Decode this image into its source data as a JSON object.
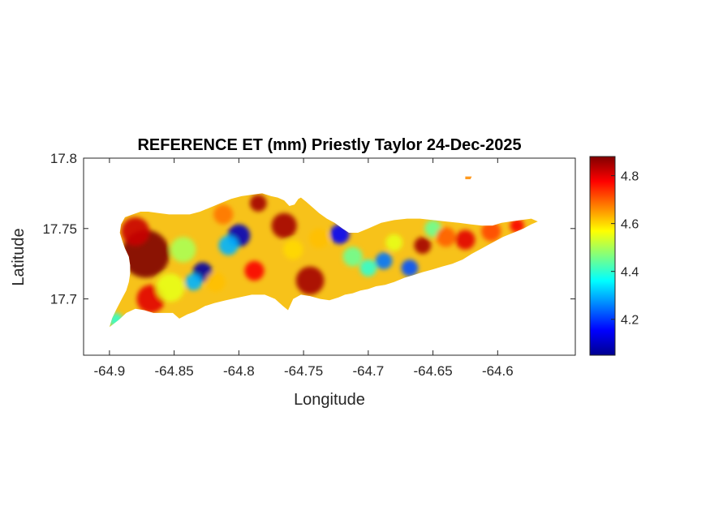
{
  "chart_data": {
    "type": "heatmap",
    "title": "REFERENCE ET (mm) Priestly Taylor 24-Dec-2025",
    "xlabel": "Longitude",
    "ylabel": "Latitude",
    "xlim": [
      -64.92,
      -64.54
    ],
    "ylim": [
      17.66,
      17.8
    ],
    "xticks": [
      -64.9,
      -64.85,
      -64.8,
      -64.75,
      -64.7,
      -64.65,
      -64.6
    ],
    "xtick_labels": [
      "-64.9",
      "-64.85",
      "-64.8",
      "-64.75",
      "-64.7",
      "-64.65",
      "-64.6"
    ],
    "yticks": [
      17.7,
      17.75,
      17.8
    ],
    "ytick_labels": [
      "17.7",
      "17.75",
      "17.8"
    ],
    "colorbar": {
      "colormap": "jet",
      "range": [
        4.05,
        4.88
      ],
      "ticks": [
        4.2,
        4.4,
        4.6,
        4.8
      ],
      "tick_labels": [
        "4.2",
        "4.4",
        "4.6",
        "4.8"
      ]
    },
    "grid": false,
    "outline": [
      [
        -64.9,
        17.68
      ],
      [
        -64.893,
        17.685
      ],
      [
        -64.887,
        17.69
      ],
      [
        -64.88,
        17.693
      ],
      [
        -64.873,
        17.692
      ],
      [
        -64.866,
        17.69
      ],
      [
        -64.858,
        17.69
      ],
      [
        -64.851,
        17.69
      ],
      [
        -64.846,
        17.686
      ],
      [
        -64.84,
        17.689
      ],
      [
        -64.834,
        17.691
      ],
      [
        -64.826,
        17.695
      ],
      [
        -64.819,
        17.697
      ],
      [
        -64.81,
        17.699
      ],
      [
        -64.8,
        17.701
      ],
      [
        -64.79,
        17.703
      ],
      [
        -64.78,
        17.703
      ],
      [
        -64.772,
        17.7
      ],
      [
        -64.766,
        17.695
      ],
      [
        -64.762,
        17.692
      ],
      [
        -64.758,
        17.7
      ],
      [
        -64.752,
        17.703
      ],
      [
        -64.745,
        17.702
      ],
      [
        -64.737,
        17.7
      ],
      [
        -64.73,
        17.699
      ],
      [
        -64.723,
        17.701
      ],
      [
        -64.718,
        17.703
      ],
      [
        -64.712,
        17.704
      ],
      [
        -64.706,
        17.706
      ],
      [
        -64.7,
        17.707
      ],
      [
        -64.694,
        17.709
      ],
      [
        -64.687,
        17.71
      ],
      [
        -64.68,
        17.712
      ],
      [
        -64.672,
        17.715
      ],
      [
        -64.665,
        17.717
      ],
      [
        -64.658,
        17.719
      ],
      [
        -64.65,
        17.721
      ],
      [
        -64.643,
        17.723
      ],
      [
        -64.635,
        17.725
      ],
      [
        -64.627,
        17.728
      ],
      [
        -64.62,
        17.732
      ],
      [
        -64.612,
        17.736
      ],
      [
        -64.604,
        17.74
      ],
      [
        -64.596,
        17.744
      ],
      [
        -64.588,
        17.747
      ],
      [
        -64.58,
        17.75
      ],
      [
        -64.574,
        17.753
      ],
      [
        -64.569,
        17.755
      ],
      [
        -64.574,
        17.757
      ],
      [
        -64.582,
        17.756
      ],
      [
        -64.59,
        17.755
      ],
      [
        -64.597,
        17.754
      ],
      [
        -64.604,
        17.752
      ],
      [
        -64.612,
        17.752
      ],
      [
        -64.621,
        17.753
      ],
      [
        -64.63,
        17.754
      ],
      [
        -64.64,
        17.755
      ],
      [
        -64.65,
        17.756
      ],
      [
        -64.66,
        17.757
      ],
      [
        -64.67,
        17.757
      ],
      [
        -64.68,
        17.756
      ],
      [
        -64.69,
        17.754
      ],
      [
        -64.7,
        17.75
      ],
      [
        -64.708,
        17.747
      ],
      [
        -64.715,
        17.747
      ],
      [
        -64.72,
        17.75
      ],
      [
        -64.726,
        17.754
      ],
      [
        -64.732,
        17.757
      ],
      [
        -64.738,
        17.761
      ],
      [
        -64.743,
        17.765
      ],
      [
        -64.748,
        17.769
      ],
      [
        -64.752,
        17.772
      ],
      [
        -64.754,
        17.771
      ],
      [
        -64.757,
        17.767
      ],
      [
        -64.761,
        17.766
      ],
      [
        -64.765,
        17.77
      ],
      [
        -64.77,
        17.772
      ],
      [
        -64.775,
        17.773
      ],
      [
        -64.782,
        17.775
      ],
      [
        -64.79,
        17.774
      ],
      [
        -64.798,
        17.773
      ],
      [
        -64.806,
        17.771
      ],
      [
        -64.814,
        17.768
      ],
      [
        -64.822,
        17.765
      ],
      [
        -64.83,
        17.762
      ],
      [
        -64.838,
        17.76
      ],
      [
        -64.846,
        17.76
      ],
      [
        -64.854,
        17.76
      ],
      [
        -64.862,
        17.761
      ],
      [
        -64.87,
        17.762
      ],
      [
        -64.876,
        17.762
      ],
      [
        -64.882,
        17.76
      ],
      [
        -64.888,
        17.758
      ],
      [
        -64.891,
        17.753
      ],
      [
        -64.892,
        17.747
      ],
      [
        -64.89,
        17.741
      ],
      [
        -64.888,
        17.736
      ],
      [
        -64.885,
        17.73
      ],
      [
        -64.884,
        17.724
      ],
      [
        -64.884,
        17.718
      ],
      [
        -64.885,
        17.712
      ],
      [
        -64.887,
        17.706
      ],
      [
        -64.891,
        17.699
      ],
      [
        -64.895,
        17.692
      ],
      [
        -64.898,
        17.686
      ]
    ],
    "islet": [
      [
        -64.625,
        17.787
      ],
      [
        -64.62,
        17.787
      ],
      [
        -64.621,
        17.785
      ],
      [
        -64.625,
        17.785
      ]
    ],
    "hotspots": [
      {
        "lon": -64.872,
        "lat": 17.732,
        "value": 4.88,
        "radius": 0.017
      },
      {
        "lon": -64.88,
        "lat": 17.748,
        "value": 4.82,
        "radius": 0.01
      },
      {
        "lon": -64.868,
        "lat": 17.7,
        "value": 4.8,
        "radius": 0.01
      },
      {
        "lon": -64.853,
        "lat": 17.708,
        "value": 4.55,
        "radius": 0.01
      },
      {
        "lon": -64.843,
        "lat": 17.735,
        "value": 4.5,
        "radius": 0.009
      },
      {
        "lon": -64.828,
        "lat": 17.719,
        "value": 4.08,
        "radius": 0.007
      },
      {
        "lon": -64.835,
        "lat": 17.712,
        "value": 4.3,
        "radius": 0.006
      },
      {
        "lon": -64.8,
        "lat": 17.745,
        "value": 4.1,
        "radius": 0.008
      },
      {
        "lon": -64.808,
        "lat": 17.738,
        "value": 4.3,
        "radius": 0.007
      },
      {
        "lon": -64.818,
        "lat": 17.712,
        "value": 4.62,
        "radius": 0.007
      },
      {
        "lon": -64.812,
        "lat": 17.76,
        "value": 4.68,
        "radius": 0.007
      },
      {
        "lon": -64.788,
        "lat": 17.72,
        "value": 4.78,
        "radius": 0.007
      },
      {
        "lon": -64.785,
        "lat": 17.768,
        "value": 4.85,
        "radius": 0.006
      },
      {
        "lon": -64.765,
        "lat": 17.752,
        "value": 4.85,
        "radius": 0.009
      },
      {
        "lon": -64.758,
        "lat": 17.735,
        "value": 4.6,
        "radius": 0.007
      },
      {
        "lon": -64.745,
        "lat": 17.713,
        "value": 4.85,
        "radius": 0.01
      },
      {
        "lon": -64.738,
        "lat": 17.743,
        "value": 4.62,
        "radius": 0.007
      },
      {
        "lon": -64.722,
        "lat": 17.746,
        "value": 4.15,
        "radius": 0.007
      },
      {
        "lon": -64.712,
        "lat": 17.73,
        "value": 4.45,
        "radius": 0.007
      },
      {
        "lon": -64.7,
        "lat": 17.722,
        "value": 4.4,
        "radius": 0.006
      },
      {
        "lon": -64.688,
        "lat": 17.727,
        "value": 4.25,
        "radius": 0.006
      },
      {
        "lon": -64.68,
        "lat": 17.74,
        "value": 4.55,
        "radius": 0.006
      },
      {
        "lon": -64.668,
        "lat": 17.722,
        "value": 4.22,
        "radius": 0.006
      },
      {
        "lon": -64.658,
        "lat": 17.738,
        "value": 4.85,
        "radius": 0.006
      },
      {
        "lon": -64.65,
        "lat": 17.75,
        "value": 4.45,
        "radius": 0.006
      },
      {
        "lon": -64.64,
        "lat": 17.744,
        "value": 4.7,
        "radius": 0.007
      },
      {
        "lon": -64.625,
        "lat": 17.742,
        "value": 4.8,
        "radius": 0.007
      },
      {
        "lon": -64.605,
        "lat": 17.748,
        "value": 4.72,
        "radius": 0.007
      },
      {
        "lon": -64.585,
        "lat": 17.752,
        "value": 4.78,
        "radius": 0.005
      },
      {
        "lon": -64.623,
        "lat": 17.786,
        "value": 4.7,
        "radius": 0.004
      },
      {
        "lon": -64.895,
        "lat": 17.685,
        "value": 4.4,
        "radius": 0.005
      }
    ]
  }
}
